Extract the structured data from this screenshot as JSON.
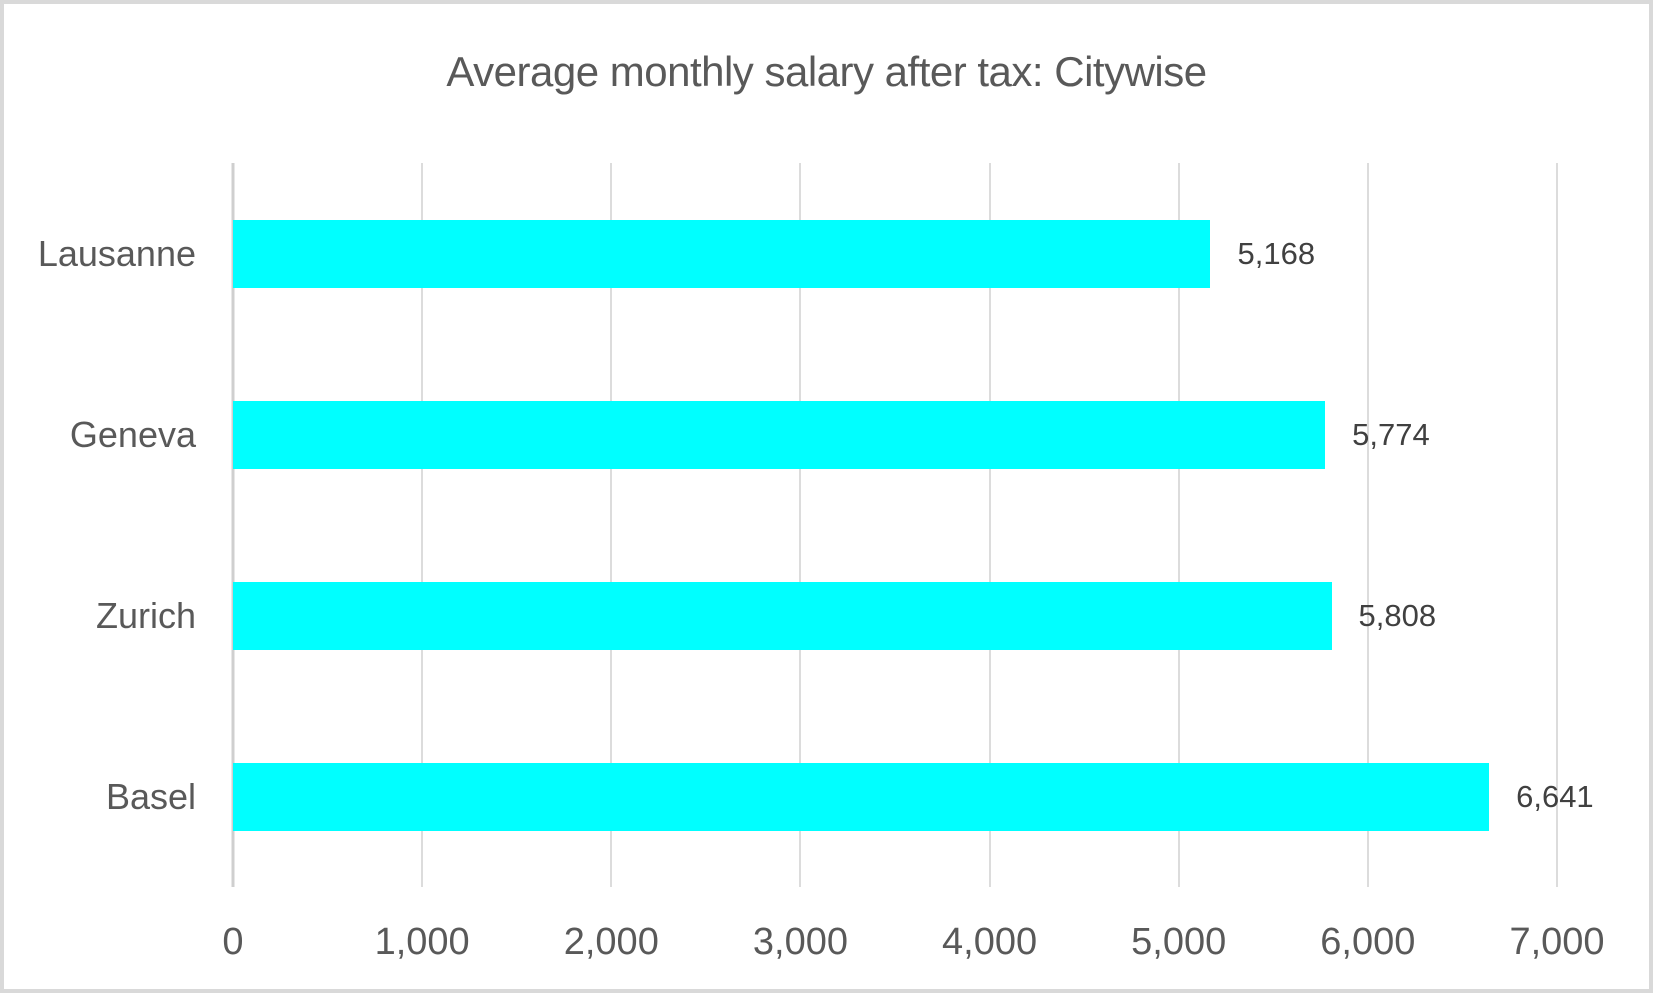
{
  "chart_data": {
    "type": "bar",
    "orientation": "horizontal",
    "title": "Average monthly salary after tax: Citywise",
    "categories": [
      "Lausanne",
      "Geneva",
      "Zurich",
      "Basel"
    ],
    "values": [
      5168,
      5774,
      5808,
      6641
    ],
    "value_labels": [
      "5,168",
      "5,774",
      "5,808",
      "6,641"
    ],
    "xlabel": "",
    "ylabel": "",
    "xlim": [
      0,
      7000
    ],
    "x_tick_values": [
      0,
      1000,
      2000,
      3000,
      4000,
      5000,
      6000,
      7000
    ],
    "x_tick_labels": [
      "0",
      "1,000",
      "2,000",
      "3,000",
      "4,000",
      "5,000",
      "6,000",
      "7,000"
    ],
    "grid": true,
    "legend": "none",
    "colors": {
      "bar_fill": "#00FFFF",
      "title_text": "#595959",
      "axis_text": "#595959",
      "value_text": "#404040",
      "gridline": "#dcdcdc",
      "axis_line": "#cfcfcf",
      "background": "#ffffff",
      "frame_border": "#d9d9d9"
    }
  }
}
